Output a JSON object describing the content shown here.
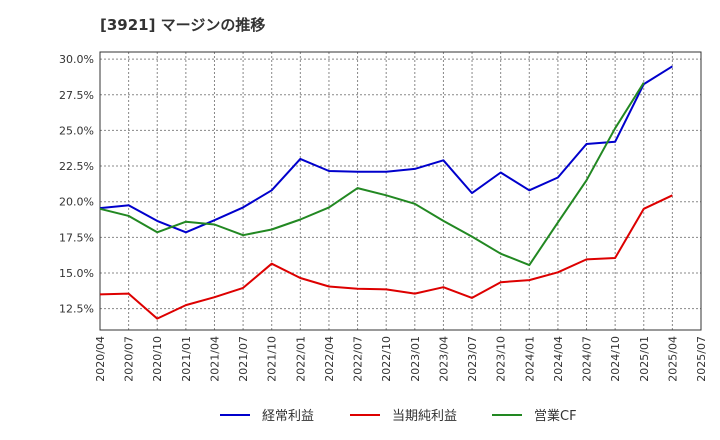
{
  "chart_data": {
    "type": "line",
    "title": "[3921]  マージンの推移",
    "x": [
      "2020/04",
      "2020/07",
      "2020/10",
      "2021/01",
      "2021/04",
      "2021/07",
      "2021/10",
      "2022/01",
      "2022/04",
      "2022/07",
      "2022/10",
      "2023/01",
      "2023/04",
      "2023/07",
      "2023/10",
      "2024/01",
      "2024/04",
      "2024/07",
      "2024/10",
      "2025/01",
      "2025/04",
      "2025/07"
    ],
    "series": [
      {
        "name": "経常利益",
        "color": "#0000cc",
        "values": [
          19.55,
          19.75,
          18.65,
          17.85,
          18.7,
          19.6,
          20.8,
          23.0,
          22.15,
          22.1,
          22.1,
          22.3,
          22.9,
          20.6,
          22.05,
          20.8,
          21.7,
          24.05,
          24.2,
          28.25,
          29.5,
          null
        ]
      },
      {
        "name": "当期純利益",
        "color": "#dd0000",
        "values": [
          13.5,
          13.55,
          11.8,
          12.75,
          13.3,
          13.95,
          15.65,
          14.65,
          14.05,
          13.9,
          13.85,
          13.55,
          14.0,
          13.25,
          14.35,
          14.5,
          15.05,
          15.95,
          16.05,
          19.5,
          20.45,
          null
        ]
      },
      {
        "name": "営業CF",
        "color": "#228822",
        "values": [
          19.5,
          19.0,
          17.85,
          18.6,
          18.4,
          17.65,
          18.05,
          18.75,
          19.6,
          20.95,
          20.45,
          19.85,
          18.65,
          17.55,
          16.35,
          15.55,
          18.55,
          21.5,
          25.15,
          28.35,
          null,
          null
        ]
      }
    ],
    "y_ticks": [
      "12.5%",
      "15.0%",
      "17.5%",
      "20.0%",
      "22.5%",
      "25.0%",
      "27.5%",
      "30.0%"
    ],
    "ylim": [
      11.0,
      30.5
    ],
    "grid": true,
    "legend_position": "bottom"
  }
}
